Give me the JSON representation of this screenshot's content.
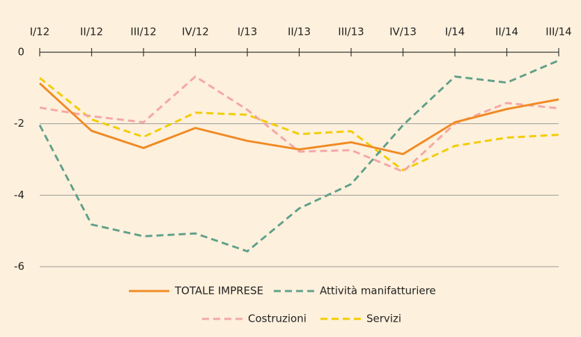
{
  "chart_data": {
    "type": "line",
    "categories": [
      "I/12",
      "II/12",
      "III/12",
      "IV/12",
      "I/13",
      "II/13",
      "III/13",
      "IV/13",
      "I/14",
      "II/14",
      "III/14"
    ],
    "series": [
      {
        "name": "TOTALE IMPRESE",
        "color": "#f08a24",
        "style": "solid",
        "values": [
          -0.87,
          -2.2,
          -2.68,
          -2.12,
          -2.48,
          -2.72,
          -2.52,
          -2.85,
          -1.96,
          -1.59,
          -1.32
        ]
      },
      {
        "name": "Attività manifatturiere",
        "color": "#5fa08a",
        "style": "dashed",
        "values": [
          -2.04,
          -4.82,
          -5.15,
          -5.07,
          -5.57,
          -4.37,
          -3.69,
          -2.04,
          -0.68,
          -0.85,
          -0.23
        ]
      },
      {
        "name": "Costruzioni",
        "color": "#f4a6a6",
        "style": "dashed",
        "values": [
          -1.55,
          -1.79,
          -1.96,
          -0.68,
          -1.61,
          -2.78,
          -2.74,
          -3.34,
          -2.0,
          -1.42,
          -1.57
        ]
      },
      {
        "name": "Servizi",
        "color": "#f2cc00",
        "style": "dashed",
        "values": [
          -0.72,
          -1.88,
          -2.37,
          -1.69,
          -1.75,
          -2.29,
          -2.21,
          -3.3,
          -2.62,
          -2.39,
          -2.31
        ]
      }
    ],
    "ylim": [
      -6,
      0
    ],
    "yticks": [
      0,
      -2,
      -4,
      -6
    ],
    "grid": true
  }
}
